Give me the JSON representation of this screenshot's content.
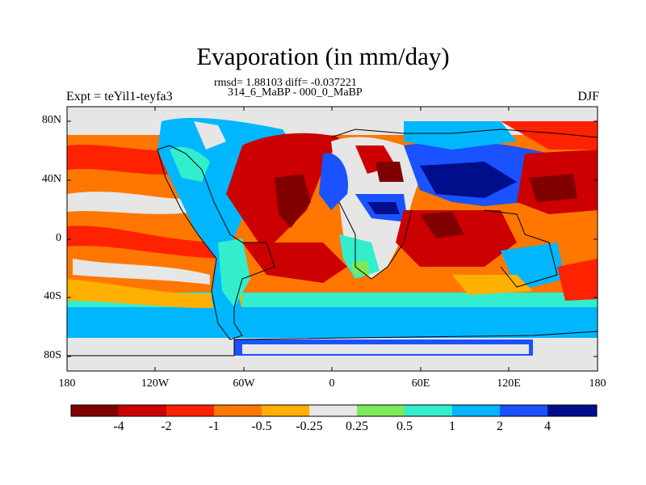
{
  "title": "Evaporation (in mm/day)",
  "stats": "rmsd= 1.88103 diff= -0.037221",
  "periods": "314_6_MaBP - 000_0_MaBP",
  "experiment": "Expt = teYil1-teyfa3",
  "season": "DJF",
  "map": {
    "projection": "cylindrical equidistant",
    "lat_range": [
      -90,
      90
    ],
    "lon_range": [
      -180,
      180
    ],
    "lat_ticks": [
      "80N",
      "40N",
      "0",
      "40S",
      "80S"
    ],
    "lon_ticks": [
      "180",
      "120W",
      "60W",
      "0",
      "60E",
      "120E",
      "180"
    ]
  },
  "colorbar": {
    "labels": [
      "-4",
      "-2",
      "-1",
      "-0.5",
      "-0.25",
      "0.25",
      "0.5",
      "1",
      "2",
      "4"
    ],
    "colors": [
      "#800000",
      "#cc0000",
      "#ff2200",
      "#ff7700",
      "#ffb000",
      "#e6e6e6",
      "#7ce85a",
      "#33eecc",
      "#00b7ff",
      "#1a52ff",
      "#000e8c"
    ]
  }
}
